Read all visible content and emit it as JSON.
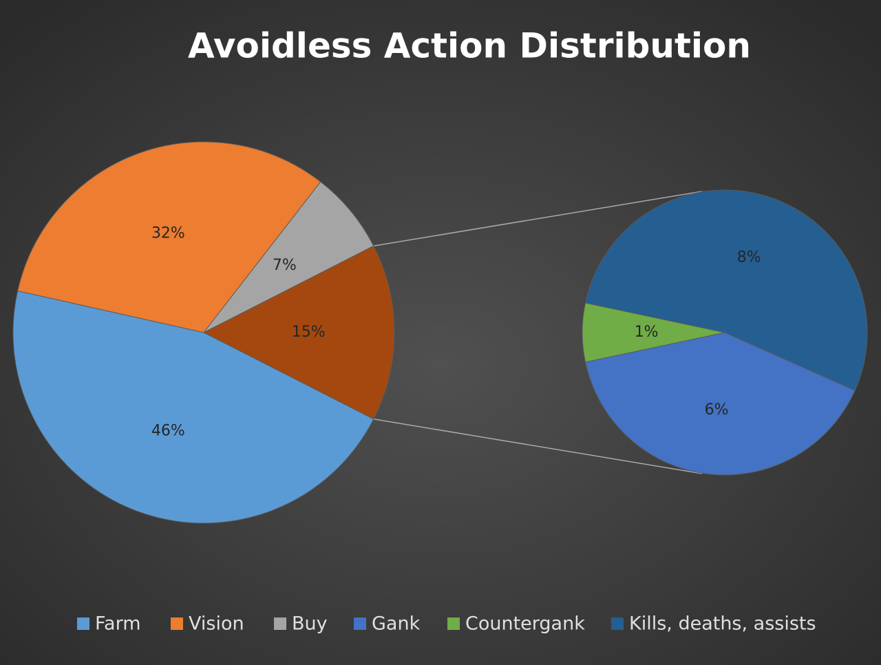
{
  "chart_data": {
    "type": "pie-of-pie",
    "title": "Avoidless Action Distribution",
    "categories": [
      "Farm",
      "Vision",
      "Buy",
      "Gank",
      "Countergank",
      "Kills, deaths, assists"
    ],
    "values": [
      46,
      32,
      7,
      6,
      1,
      8
    ],
    "value_labels": [
      "46%",
      "32%",
      "7%",
      "6%",
      "1%",
      "8%"
    ],
    "colors": [
      "#5b9bd5",
      "#ed7d31",
      "#a5a5a5",
      "#4472c4",
      "#70ad47",
      "#255e91"
    ],
    "other_value": 15,
    "other_value_label": "15%",
    "other_color": "#a5480f",
    "legend": "bottom"
  }
}
